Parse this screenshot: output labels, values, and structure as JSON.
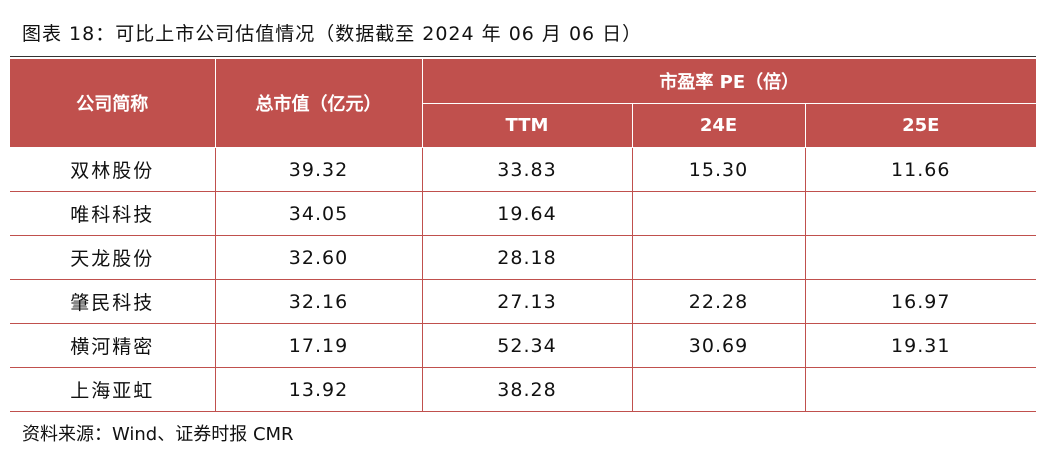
{
  "caption": "图表 18：可比上市公司估值情况（数据截至 2024 年 06 月 06 日）",
  "table": {
    "headers": {
      "company": "公司简称",
      "market_cap": "总市值（亿元）",
      "pe_group": "市盈率 PE（倍）",
      "ttm": "TTM",
      "e24": "24E",
      "e25": "25E"
    },
    "rows": [
      {
        "name": "双林股份",
        "market_cap": "39.32",
        "ttm": "33.83",
        "e24": "15.30",
        "e25": "11.66"
      },
      {
        "name": "唯科科技",
        "market_cap": "34.05",
        "ttm": "19.64",
        "e24": "",
        "e25": ""
      },
      {
        "name": "天龙股份",
        "market_cap": "32.60",
        "ttm": "28.18",
        "e24": "",
        "e25": ""
      },
      {
        "name": "肇民科技",
        "market_cap": "32.16",
        "ttm": "27.13",
        "e24": "22.28",
        "e25": "16.97"
      },
      {
        "name": "横河精密",
        "market_cap": "17.19",
        "ttm": "52.34",
        "e24": "30.69",
        "e25": "19.31"
      },
      {
        "name": "上海亚虹",
        "market_cap": "13.92",
        "ttm": "38.28",
        "e24": "",
        "e25": ""
      }
    ]
  },
  "source": "资料来源：Wind、证券时报 CMR",
  "colors": {
    "header_bg": "#c0504d",
    "header_text": "#ffffff",
    "border": "#c0504d"
  }
}
